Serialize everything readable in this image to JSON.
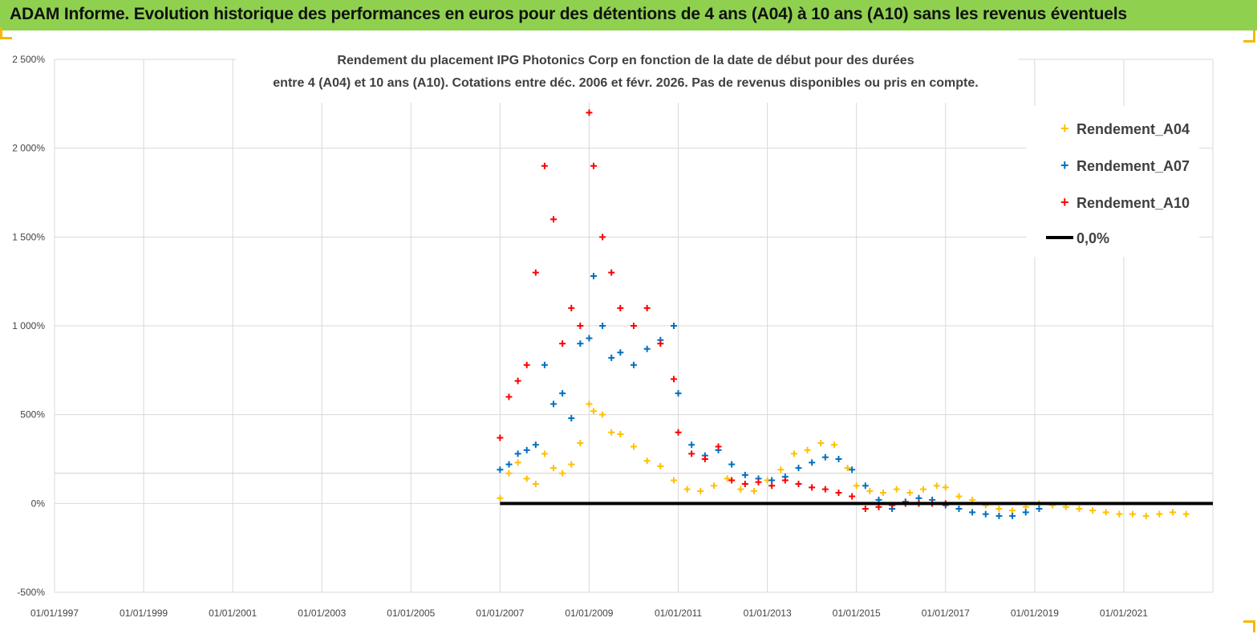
{
  "header": {
    "title": "ADAM Informe. Evolution historique des performances en euros pour des détentions de 4 ans (A04) à 10 ans (A10) sans les revenus éventuels"
  },
  "colors": {
    "header_bg": "#8fd14f",
    "a04": "#ffc000",
    "a07": "#0070c0",
    "a10": "#ff0000",
    "zero": "#000000",
    "grid": "#d9d9d9"
  },
  "chart_data": {
    "type": "scatter",
    "title_lines": [
      "Rendement du placement IPG Photonics Corp en fonction de la date de début pour des durées",
      "entre 4 (A04) et 10 ans (A10). Cotations entre déc. 2006 et févr. 2026. Pas de revenus disponibles ou pris en compte."
    ],
    "x_axis": {
      "type": "date",
      "range": [
        1997.0,
        2023.0
      ],
      "tick_labels": [
        "01/01/1997",
        "01/01/1999",
        "01/01/2001",
        "01/01/2003",
        "01/01/2005",
        "01/01/2007",
        "01/01/2009",
        "01/01/2011",
        "01/01/2013",
        "01/01/2015",
        "01/01/2017",
        "01/01/2019",
        "01/01/2021"
      ]
    },
    "y_axis": {
      "unit": "%",
      "range": [
        -500,
        2500
      ],
      "tick_labels": [
        "2 500%",
        "2 000%",
        "1 500%",
        "1 000%",
        "500%",
        "0%",
        "-500%"
      ],
      "tick_values": [
        2500,
        2000,
        1500,
        1000,
        500,
        0,
        -500
      ]
    },
    "grid": true,
    "legend_position": "top-right",
    "series": [
      {
        "name": "Rendement_A04",
        "color": "#ffc000",
        "x": [
          2007.0,
          2007.2,
          2007.4,
          2007.6,
          2007.8,
          2008.0,
          2008.2,
          2008.4,
          2008.6,
          2008.8,
          2009.0,
          2009.1,
          2009.3,
          2009.5,
          2009.7,
          2010.0,
          2010.3,
          2010.6,
          2010.9,
          2011.2,
          2011.5,
          2011.8,
          2012.1,
          2012.4,
          2012.7,
          2013.0,
          2013.3,
          2013.6,
          2013.9,
          2014.2,
          2014.5,
          2014.8,
          2015.0,
          2015.3,
          2015.6,
          2015.9,
          2016.2,
          2016.5,
          2016.8,
          2017.0,
          2017.3,
          2017.6,
          2017.9,
          2018.2,
          2018.5,
          2018.8,
          2019.1,
          2019.4,
          2019.7,
          2020.0,
          2020.3,
          2020.6,
          2020.9,
          2021.2,
          2021.5,
          2021.8,
          2022.1,
          2022.4
        ],
        "y": [
          30,
          170,
          230,
          140,
          110,
          280,
          200,
          170,
          220,
          340,
          560,
          520,
          500,
          400,
          390,
          320,
          240,
          210,
          130,
          80,
          70,
          100,
          140,
          80,
          70,
          130,
          190,
          280,
          300,
          340,
          330,
          200,
          100,
          70,
          60,
          80,
          60,
          80,
          100,
          90,
          40,
          20,
          -10,
          -30,
          -40,
          -20,
          0,
          -10,
          -20,
          -30,
          -40,
          -50,
          -60,
          -60,
          -70,
          -60,
          -50,
          -60
        ]
      },
      {
        "name": "Rendement_A07",
        "color": "#0070c0",
        "x": [
          2007.0,
          2007.2,
          2007.4,
          2007.6,
          2007.8,
          2008.0,
          2008.2,
          2008.4,
          2008.6,
          2008.8,
          2009.0,
          2009.1,
          2009.3,
          2009.5,
          2009.7,
          2010.0,
          2010.3,
          2010.6,
          2010.9,
          2011.0,
          2011.3,
          2011.6,
          2011.9,
          2012.2,
          2012.5,
          2012.8,
          2013.1,
          2013.4,
          2013.7,
          2014.0,
          2014.3,
          2014.6,
          2014.9,
          2015.2,
          2015.5,
          2015.8,
          2016.1,
          2016.4,
          2016.7,
          2017.0,
          2017.3,
          2017.6,
          2017.9,
          2018.2,
          2018.5,
          2018.8,
          2019.1
        ],
        "y": [
          190,
          220,
          280,
          300,
          330,
          780,
          560,
          620,
          480,
          900,
          930,
          1280,
          1000,
          820,
          850,
          780,
          870,
          920,
          1000,
          620,
          330,
          270,
          300,
          220,
          160,
          140,
          130,
          150,
          200,
          230,
          260,
          250,
          190,
          100,
          20,
          -30,
          10,
          30,
          20,
          -10,
          -30,
          -50,
          -60,
          -70,
          -70,
          -50,
          -30
        ]
      },
      {
        "name": "Rendement_A10",
        "color": "#ff0000",
        "x": [
          2007.0,
          2007.2,
          2007.4,
          2007.6,
          2007.8,
          2008.0,
          2008.2,
          2008.4,
          2008.6,
          2008.8,
          2009.0,
          2009.1,
          2009.3,
          2009.5,
          2009.7,
          2010.0,
          2010.3,
          2010.6,
          2010.9,
          2011.0,
          2011.3,
          2011.6,
          2011.9,
          2012.2,
          2012.5,
          2012.8,
          2013.1,
          2013.4,
          2013.7,
          2014.0,
          2014.3,
          2014.6,
          2014.9,
          2015.2,
          2015.5,
          2015.8,
          2016.1,
          2016.4,
          2016.7,
          2017.0
        ],
        "y": [
          370,
          600,
          690,
          780,
          1300,
          1900,
          1600,
          900,
          1100,
          1000,
          2200,
          1900,
          1500,
          1300,
          1100,
          1000,
          1100,
          900,
          700,
          400,
          280,
          250,
          320,
          130,
          110,
          120,
          100,
          130,
          110,
          90,
          80,
          60,
          40,
          -30,
          -20,
          -10,
          0,
          0,
          0,
          0
        ]
      },
      {
        "name": "0,0%",
        "color": "#000000",
        "x": [
          2007.0,
          2023.0
        ],
        "y": [
          0,
          0
        ]
      }
    ]
  }
}
